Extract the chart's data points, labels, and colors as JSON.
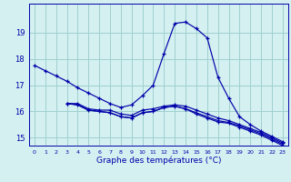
{
  "title": "Graphe des températures (°C)",
  "background_color": "#d4f0f0",
  "grid_color": "#a0d0d0",
  "line_color": "#0000aa",
  "xlim": [
    -0.5,
    23.5
  ],
  "ylim": [
    14.7,
    20.1
  ],
  "yticks": [
    15,
    16,
    17,
    18,
    19
  ],
  "xticks": [
    0,
    1,
    2,
    3,
    4,
    5,
    6,
    7,
    8,
    9,
    10,
    11,
    12,
    13,
    14,
    15,
    16,
    17,
    18,
    19,
    20,
    21,
    22,
    23
  ],
  "series1_x": [
    0,
    1,
    2,
    3,
    4,
    5,
    6,
    7,
    8,
    9,
    10,
    11,
    12,
    13,
    14,
    15,
    16,
    17,
    18,
    19,
    20,
    21,
    22,
    23
  ],
  "series1_y": [
    17.75,
    17.55,
    17.35,
    17.15,
    16.9,
    16.7,
    16.5,
    16.3,
    16.15,
    16.25,
    16.6,
    17.0,
    18.2,
    19.35,
    19.4,
    19.15,
    18.8,
    17.3,
    16.5,
    15.8,
    15.5,
    15.25,
    15.05,
    14.85
  ],
  "series2_x": [
    3,
    4,
    5,
    6,
    7,
    8,
    9,
    10,
    11,
    12,
    13,
    14,
    15,
    16,
    17,
    18,
    19,
    20,
    21,
    22,
    23
  ],
  "series2_y": [
    16.3,
    16.3,
    16.1,
    16.05,
    16.05,
    15.9,
    15.85,
    16.05,
    16.1,
    16.2,
    16.25,
    16.2,
    16.05,
    15.9,
    15.75,
    15.65,
    15.5,
    15.35,
    15.2,
    15.0,
    14.8
  ],
  "series3_x": [
    3,
    4,
    5,
    6,
    7,
    8,
    9,
    10,
    11,
    12,
    13,
    14,
    15,
    16,
    17,
    18,
    19,
    20,
    21,
    22,
    23
  ],
  "series3_y": [
    16.3,
    16.25,
    16.05,
    16.0,
    15.95,
    15.8,
    15.75,
    15.95,
    16.0,
    16.15,
    16.2,
    16.1,
    15.9,
    15.75,
    15.6,
    15.55,
    15.4,
    15.25,
    15.1,
    14.9,
    14.7
  ],
  "series4_x": [
    3,
    4,
    5,
    6,
    7,
    8,
    9,
    10,
    11,
    12,
    13,
    14,
    15,
    16,
    17,
    18,
    19,
    20,
    21,
    22,
    23
  ],
  "series4_y": [
    16.3,
    16.25,
    16.05,
    16.0,
    15.95,
    15.8,
    15.75,
    15.95,
    16.0,
    16.15,
    16.2,
    16.1,
    15.95,
    15.8,
    15.65,
    15.58,
    15.45,
    15.3,
    15.15,
    14.95,
    14.75
  ]
}
